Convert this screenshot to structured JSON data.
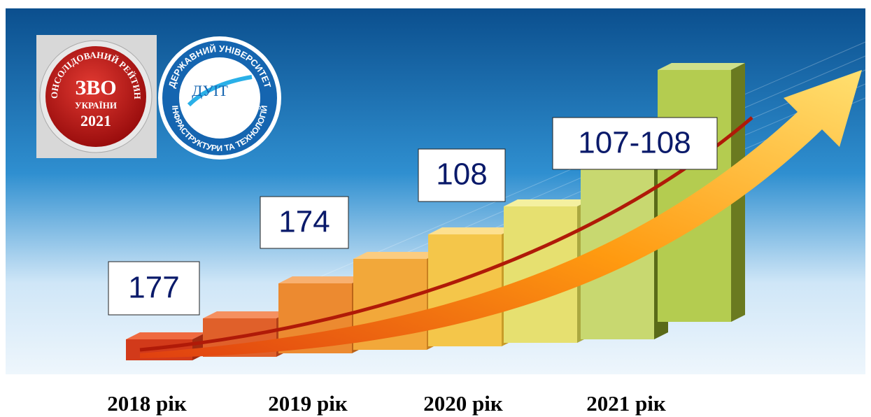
{
  "badge": {
    "ring_text": "КОНСОЛІДОВАНИЙ РЕЙТИНГ",
    "title": "ЗВО",
    "subtitle": "УКРАЇНИ",
    "year": "2021"
  },
  "university_logo": {
    "top_text": "ДЕРЖАВНИЙ УНІВЕРСИТЕТ",
    "abbreviation": "ДУІТ",
    "bottom_text": "ІНФРАСТРУКТУРИ ТА ТЕХНОЛОГІЙ"
  },
  "ranks": [
    "177",
    "174",
    "108",
    "107-108"
  ],
  "years": [
    "2018 рік",
    "2019 рік",
    "2020 рік",
    "2021 рік"
  ]
}
